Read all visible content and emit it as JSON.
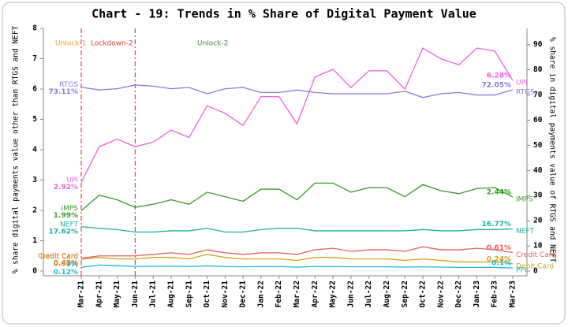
{
  "chart_data": {
    "type": "line",
    "title": "Chart - 19: Trends in % Share of Digital Payment Value",
    "y_label": "% share digital payments value other than RTGS and NEFT",
    "y2_label": "% share in digital payments value of RTGS and NEFT",
    "annotations": [
      {
        "text": "Unlock-1",
        "color": "#f0a030"
      },
      {
        "text": "Lockdown-2",
        "color": "#e8403a"
      },
      {
        "text": "Unlock-2",
        "color": "#3a9a2a"
      }
    ],
    "vlines": [
      "Mar-21",
      "Jun-21"
    ],
    "categories": [
      "Mar-21",
      "Apr-21",
      "May-21",
      "Jun-21",
      "Jul-21",
      "Aug-21",
      "Sep-21",
      "Oct-21",
      "Nov-21",
      "Dec-21",
      "Jan-22",
      "Feb-22",
      "Mar-22",
      "Apr-22",
      "May-22",
      "Jun-22",
      "Jul-22",
      "Aug-22",
      "Sep-22",
      "Oct-22",
      "Nov-22",
      "Dec-22",
      "Jan-23",
      "Feb-23",
      "Mar-23"
    ],
    "ylim": [
      0,
      8
    ],
    "yticks": [
      0,
      1,
      2,
      3,
      4,
      5,
      6,
      7,
      8
    ],
    "y2lim": [
      0,
      96.5
    ],
    "y2ticks": [
      0,
      10,
      20,
      30,
      40,
      50,
      60,
      70,
      80,
      90
    ],
    "series": [
      {
        "name": "RTGS",
        "color": "#8a7ae0",
        "axis": "y2",
        "values": [
          73.11,
          72,
          72.5,
          74,
          73.5,
          72.5,
          73,
          70.5,
          72.5,
          73,
          71,
          71,
          72,
          71,
          70.5,
          70.5,
          70.5,
          70.5,
          71.5,
          69,
          70.5,
          71,
          70,
          70,
          72.05
        ],
        "value_labels": [
          "73.11%",
          null,
          null,
          null,
          null,
          null,
          null,
          null,
          null,
          null,
          null,
          null,
          null,
          null,
          null,
          null,
          null,
          null,
          null,
          null,
          null,
          null,
          null,
          null,
          "72.05%"
        ]
      },
      {
        "name": "NEFT",
        "color": "#20b0a0",
        "axis": "y2",
        "values": [
          17.62,
          17,
          16.5,
          15.5,
          15.5,
          16,
          16,
          17,
          15.5,
          15.5,
          16.5,
          17,
          17,
          16,
          16,
          16,
          16,
          16,
          16,
          16.5,
          16,
          16,
          16.5,
          16.5,
          16.77
        ],
        "value_labels": [
          "17.62%",
          null,
          null,
          null,
          null,
          null,
          null,
          null,
          null,
          null,
          null,
          null,
          null,
          null,
          null,
          null,
          null,
          null,
          null,
          null,
          null,
          null,
          null,
          null,
          "16.77%"
        ]
      },
      {
        "name": "UPI",
        "color": "#f060e0",
        "values": [
          2.92,
          4.1,
          4.35,
          4.1,
          4.25,
          4.65,
          4.4,
          5.45,
          5.2,
          4.8,
          5.75,
          5.75,
          4.85,
          6.4,
          6.65,
          6.05,
          6.6,
          6.6,
          6.0,
          7.35,
          7.0,
          6.8,
          7.35,
          7.25,
          6.28
        ],
        "value_labels": [
          "2.92%",
          null,
          null,
          null,
          null,
          null,
          null,
          null,
          null,
          null,
          null,
          null,
          null,
          null,
          null,
          null,
          null,
          null,
          null,
          null,
          null,
          null,
          null,
          null,
          "6.28%"
        ]
      },
      {
        "name": "IMPS",
        "color": "#3a9a2a",
        "values": [
          1.99,
          2.5,
          2.35,
          2.1,
          2.2,
          2.35,
          2.2,
          2.6,
          2.45,
          2.3,
          2.7,
          2.7,
          2.35,
          2.9,
          2.9,
          2.6,
          2.75,
          2.75,
          2.45,
          2.85,
          2.65,
          2.55,
          2.72,
          2.75,
          2.44
        ],
        "value_labels": [
          "1.99%",
          null,
          null,
          null,
          null,
          null,
          null,
          null,
          null,
          null,
          null,
          null,
          null,
          null,
          null,
          null,
          null,
          null,
          null,
          null,
          null,
          null,
          null,
          null,
          "2.44%"
        ]
      },
      {
        "name": "Credit Card",
        "color": "#e8605a",
        "values": [
          0.42,
          0.5,
          0.5,
          0.5,
          0.55,
          0.6,
          0.55,
          0.7,
          0.6,
          0.55,
          0.6,
          0.6,
          0.55,
          0.7,
          0.75,
          0.65,
          0.7,
          0.7,
          0.65,
          0.8,
          0.7,
          0.7,
          0.75,
          0.7,
          0.61
        ],
        "value_labels": [
          "0.42%",
          null,
          null,
          null,
          null,
          null,
          null,
          null,
          null,
          null,
          null,
          null,
          null,
          null,
          null,
          null,
          null,
          null,
          null,
          null,
          null,
          null,
          null,
          null,
          "0.61%"
        ]
      },
      {
        "name": "Debit Card",
        "color": "#d8a020",
        "values": [
          0.39,
          0.45,
          0.4,
          0.4,
          0.45,
          0.45,
          0.4,
          0.55,
          0.45,
          0.4,
          0.4,
          0.4,
          0.35,
          0.45,
          0.45,
          0.4,
          0.4,
          0.4,
          0.35,
          0.4,
          0.35,
          0.3,
          0.3,
          0.3,
          0.24
        ],
        "value_labels": [
          "0.39%",
          null,
          null,
          null,
          null,
          null,
          null,
          null,
          null,
          null,
          null,
          null,
          null,
          null,
          null,
          null,
          null,
          null,
          null,
          null,
          null,
          null,
          null,
          null,
          "0.24%"
        ]
      },
      {
        "name": "PPI",
        "color": "#20b8d8",
        "values": [
          0.12,
          0.2,
          0.18,
          0.15,
          0.16,
          0.16,
          0.15,
          0.17,
          0.15,
          0.14,
          0.15,
          0.15,
          0.13,
          0.15,
          0.15,
          0.14,
          0.14,
          0.14,
          0.13,
          0.14,
          0.13,
          0.12,
          0.12,
          0.12,
          0.1
        ],
        "value_labels": [
          "0.12%",
          null,
          null,
          null,
          null,
          null,
          null,
          null,
          null,
          null,
          null,
          null,
          null,
          null,
          null,
          null,
          null,
          null,
          null,
          null,
          null,
          null,
          null,
          null,
          "0.1%"
        ]
      }
    ]
  }
}
